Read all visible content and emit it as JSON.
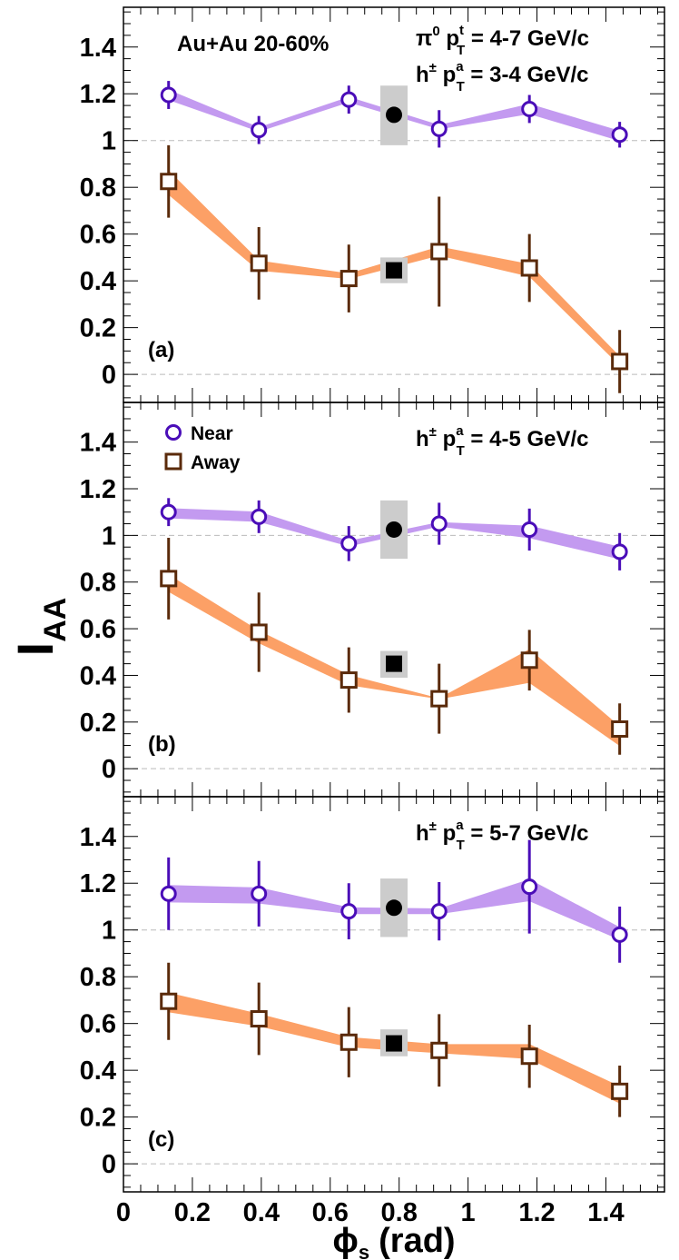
{
  "chart_data": {
    "type": "scatter",
    "xlabel": "ϕ",
    "xlabel_sub": "s",
    "xlabel_unit": "(rad)",
    "ylabel": "I",
    "ylabel_sub": "AA",
    "xlim": [
      0,
      1.57
    ],
    "ylim": [
      -0.12,
      1.57
    ],
    "x_ticks": [
      0,
      0.2,
      0.4,
      0.6,
      0.8,
      1,
      1.2,
      1.4
    ],
    "x_tick_labels": [
      "0",
      "0.2",
      "0.4",
      "0.6",
      "0.8",
      "1",
      "1.2",
      "1.4"
    ],
    "y_ticks": [
      0,
      0.2,
      0.4,
      0.6,
      0.8,
      1,
      1.2,
      1.4
    ],
    "y_tick_labels": [
      "0",
      "0.2",
      "0.4",
      "0.6",
      "0.8",
      "1",
      "1.2",
      "1.4"
    ],
    "reference_lines": [
      0,
      1
    ],
    "legend": {
      "placement": "top-left of panel (b)",
      "entries": [
        {
          "name": "Near",
          "marker": "open-circle",
          "color": "#4a0db8"
        },
        {
          "name": "Away",
          "marker": "open-square",
          "color": "#5a2a0a"
        }
      ]
    },
    "colors": {
      "near_marker": "#4a0db8",
      "near_band": "#c39af0",
      "away_marker": "#5a2a0a",
      "away_band": "#fca066",
      "integrated_box": "#cccccc",
      "integrated_marker": "#000000",
      "reference_line": "#bbbbbb"
    },
    "panels": [
      {
        "label": "(a)",
        "header": "Au+Au 20-60%",
        "annotations": [
          {
            "prefix": "π",
            "prefix_sup": "0",
            "p": " p",
            "sup": "t",
            "sub": "T",
            "value": " = 4-7 GeV/c"
          },
          {
            "prefix": "h",
            "prefix_sup": "±",
            "p": " p",
            "sup": "a",
            "sub": "T",
            "value": " = 3-4 GeV/c"
          }
        ],
        "series": [
          {
            "name": "Near",
            "x": [
              0.131,
              0.393,
              0.654,
              0.916,
              1.178,
              1.44
            ],
            "y": [
              1.195,
              1.045,
              1.175,
              1.05,
              1.135,
              1.025
            ],
            "yerr": [
              0.06,
              0.06,
              0.06,
              0.08,
              0.06,
              0.055
            ],
            "band_lo": [
              1.175,
              1.04,
              1.165,
              1.05,
              1.115,
              1.0
            ],
            "band_hi": [
              1.215,
              1.055,
              1.185,
              1.065,
              1.155,
              1.04
            ]
          },
          {
            "name": "Away",
            "x": [
              0.131,
              0.393,
              0.654,
              0.916,
              1.178,
              1.44
            ],
            "y": [
              0.825,
              0.475,
              0.41,
              0.525,
              0.455,
              0.055
            ],
            "yerr": [
              0.155,
              0.155,
              0.145,
              0.235,
              0.145,
              0.135
            ],
            "band_lo": [
              0.77,
              0.445,
              0.41,
              0.51,
              0.42,
              0.04
            ],
            "band_hi": [
              0.87,
              0.485,
              0.43,
              0.545,
              0.47,
              0.075
            ]
          }
        ],
        "integrated": {
          "x": 0.785,
          "near": {
            "y": 1.11,
            "box_lo": 0.98,
            "box_hi": 1.235
          },
          "away": {
            "y": 0.445,
            "box_lo": 0.39,
            "box_hi": 0.5
          }
        }
      },
      {
        "label": "(b)",
        "annotations": [
          {
            "prefix": "h",
            "prefix_sup": "±",
            "p": " p",
            "sup": "a",
            "sub": "T",
            "value": " = 4-5 GeV/c"
          }
        ],
        "series": [
          {
            "name": "Near",
            "x": [
              0.131,
              0.393,
              0.654,
              0.916,
              1.178,
              1.44
            ],
            "y": [
              1.1,
              1.08,
              0.965,
              1.05,
              1.025,
              0.93
            ],
            "yerr": [
              0.06,
              0.07,
              0.075,
              0.09,
              0.09,
              0.08
            ],
            "band_lo": [
              1.075,
              1.06,
              0.955,
              1.04,
              0.99,
              0.9
            ],
            "band_hi": [
              1.115,
              1.1,
              0.975,
              1.055,
              1.04,
              0.95
            ]
          },
          {
            "name": "Away",
            "x": [
              0.131,
              0.393,
              0.654,
              0.916,
              1.178,
              1.44
            ],
            "y": [
              0.815,
              0.585,
              0.38,
              0.3,
              0.465,
              0.17
            ],
            "yerr": [
              0.175,
              0.17,
              0.14,
              0.15,
              0.13,
              0.11
            ],
            "band_lo": [
              0.76,
              0.54,
              0.36,
              0.3,
              0.37,
              0.1
            ],
            "band_hi": [
              0.83,
              0.59,
              0.4,
              0.3,
              0.51,
              0.18
            ]
          }
        ],
        "integrated": {
          "x": 0.785,
          "near": {
            "y": 1.025,
            "box_lo": 0.9,
            "box_hi": 1.15
          },
          "away": {
            "y": 0.45,
            "box_lo": 0.39,
            "box_hi": 0.505
          }
        }
      },
      {
        "label": "(c)",
        "annotations": [
          {
            "prefix": "h",
            "prefix_sup": "±",
            "p": " p",
            "sup": "a",
            "sub": "T",
            "value": " = 5-7 GeV/c"
          }
        ],
        "series": [
          {
            "name": "Near",
            "x": [
              0.131,
              0.393,
              0.654,
              0.916,
              1.178,
              1.44
            ],
            "y": [
              1.155,
              1.155,
              1.08,
              1.08,
              1.185,
              0.98
            ],
            "yerr": [
              0.155,
              0.14,
              0.12,
              0.125,
              0.2,
              0.12
            ],
            "band_lo": [
              1.12,
              1.115,
              1.07,
              1.07,
              1.125,
              0.96
            ],
            "band_hi": [
              1.19,
              1.18,
              1.095,
              1.09,
              1.215,
              1.01
            ]
          },
          {
            "name": "Away",
            "x": [
              0.131,
              0.393,
              0.654,
              0.916,
              1.178,
              1.44
            ],
            "y": [
              0.695,
              0.62,
              0.52,
              0.485,
              0.46,
              0.31
            ],
            "yerr": [
              0.165,
              0.155,
              0.15,
              0.155,
              0.135,
              0.11
            ],
            "band_lo": [
              0.65,
              0.59,
              0.5,
              0.475,
              0.45,
              0.26
            ],
            "band_hi": [
              0.73,
              0.64,
              0.54,
              0.51,
              0.51,
              0.33
            ]
          }
        ],
        "integrated": {
          "x": 0.785,
          "near": {
            "y": 1.095,
            "box_lo": 0.97,
            "box_hi": 1.22
          },
          "away": {
            "y": 0.515,
            "box_lo": 0.46,
            "box_hi": 0.575
          }
        }
      }
    ]
  }
}
